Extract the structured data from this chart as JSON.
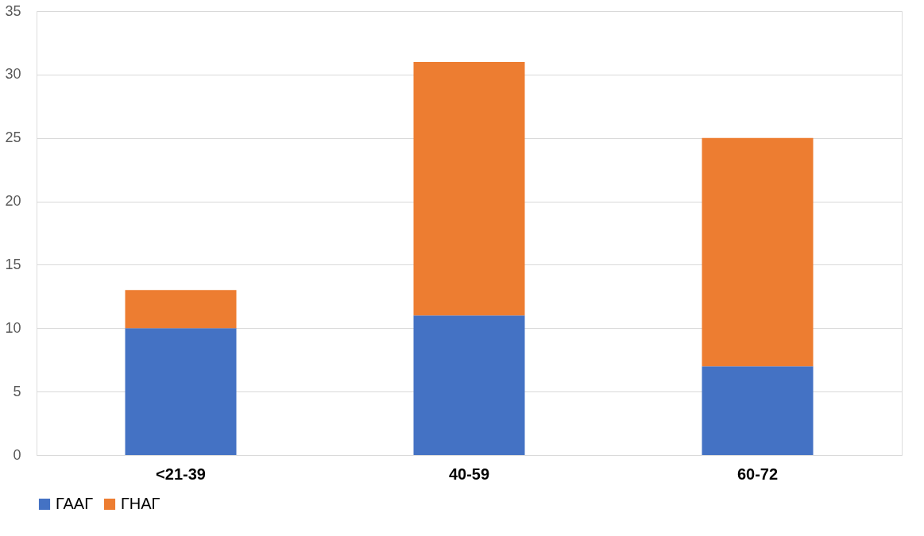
{
  "chart_data": {
    "type": "bar",
    "stacked": true,
    "categories": [
      "<21-39",
      "40-59",
      "60-72"
    ],
    "series": [
      {
        "name": "ГААГ",
        "color": "#4472c4",
        "values": [
          10,
          11,
          7
        ]
      },
      {
        "name": "ГНАГ",
        "color": "#ed7d31",
        "values": [
          3,
          20,
          18
        ]
      }
    ],
    "ylim": [
      0,
      35
    ],
    "yticks": [
      0,
      5,
      10,
      15,
      20,
      25,
      30,
      35
    ],
    "grid": "y",
    "legend": "bottom"
  }
}
